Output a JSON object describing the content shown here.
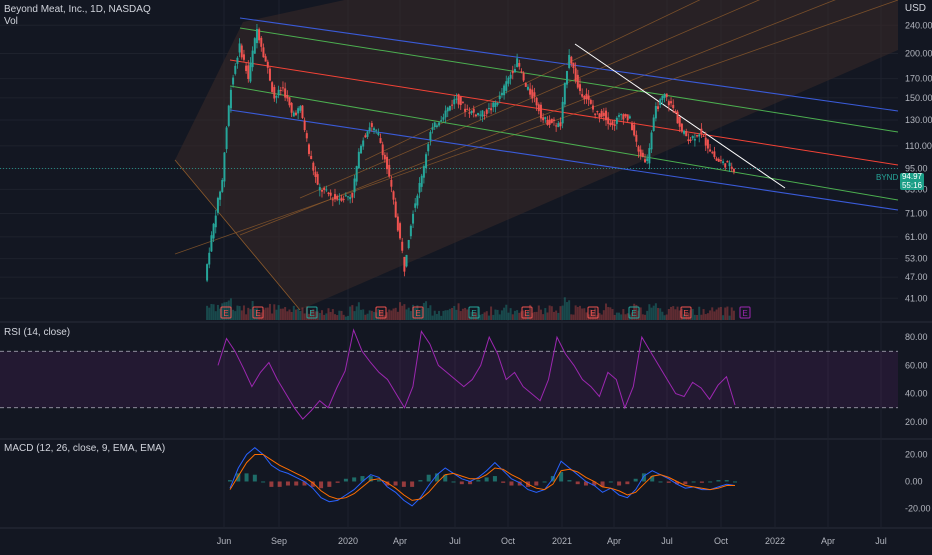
{
  "header": {
    "symbol_line": "Beyond Meat, Inc., 1D, NASDAQ",
    "vol_label": "Vol",
    "currency": "USD"
  },
  "price_badge": {
    "symbol": "BYND",
    "price": "94.97",
    "countdown": "55:16"
  },
  "earnings_marker": "E",
  "colors": {
    "bg": "#131722",
    "grid": "#1e222d",
    "up": "#26a69a",
    "down": "#ef5350",
    "rsi": "#9c27b0",
    "macd": "#2962ff",
    "signal": "#ff6d00",
    "pitchfork_fill": "#3a2a28",
    "channel_blue": "#3a5bd9",
    "channel_green": "#4caf50",
    "channel_red": "#f44336",
    "trend_white": "#ffffff"
  },
  "chart_data": [
    {
      "type": "candlestick",
      "title": "Beyond Meat, Inc., 1D, NASDAQ",
      "y_axis": {
        "scale": "log",
        "ticks": [
          240,
          200,
          170,
          150,
          130,
          110,
          95,
          83,
          71,
          61,
          53,
          47,
          41
        ],
        "ylim": [
          38,
          265
        ],
        "side": "right"
      },
      "x_axis": {
        "ticks": [
          "Jun",
          "Sep",
          "2020",
          "Apr",
          "Jul",
          "Oct",
          "2021",
          "Apr",
          "Jul",
          "Oct",
          "2022",
          "Apr",
          "Jul"
        ]
      },
      "last_price": 94.97,
      "price_path": [
        [
          "Jun",
          46
        ],
        [
          "Jun",
          66
        ],
        [
          "Jun",
          88
        ],
        [
          "Jun",
          160
        ],
        [
          "Jun",
          210
        ],
        [
          "Jul",
          170
        ],
        [
          "Jul",
          234
        ],
        [
          "Jul",
          190
        ],
        [
          "Aug",
          150
        ],
        [
          "Aug",
          160
        ],
        [
          "Sep",
          135
        ],
        [
          "Sep",
          140
        ],
        [
          "Oct",
          105
        ],
        [
          "Oct",
          84
        ],
        [
          "Nov",
          81
        ],
        [
          "Nov",
          78
        ],
        [
          "Dec",
          79
        ],
        [
          "Dec",
          80
        ],
        [
          "2020",
          112
        ],
        [
          "2020",
          125
        ],
        [
          "Feb",
          118
        ],
        [
          "Feb",
          95
        ],
        [
          "Mar",
          70
        ],
        [
          "Mar",
          50
        ],
        [
          "Apr",
          72
        ],
        [
          "Apr",
          90
        ],
        [
          "May",
          120
        ],
        [
          "May",
          130
        ],
        [
          "Jun",
          140
        ],
        [
          "Jun",
          150
        ],
        [
          "Jul",
          140
        ],
        [
          "Jul",
          136
        ],
        [
          "Aug",
          135
        ],
        [
          "Aug",
          140
        ],
        [
          "Sep",
          150
        ],
        [
          "Sep",
          170
        ],
        [
          "Oct",
          190
        ],
        [
          "Oct",
          160
        ],
        [
          "Nov",
          150
        ],
        [
          "Nov",
          130
        ],
        [
          "Dec",
          128
        ],
        [
          "Dec",
          125
        ],
        [
          "2021",
          200
        ],
        [
          "2021",
          160
        ],
        [
          "Feb",
          150
        ],
        [
          "Feb",
          135
        ],
        [
          "Mar",
          135
        ],
        [
          "Mar",
          125
        ],
        [
          "Apr",
          135
        ],
        [
          "Apr",
          130
        ],
        [
          "May",
          105
        ],
        [
          "May",
          100
        ],
        [
          "Jun",
          140
        ],
        [
          "Jun",
          152
        ],
        [
          "Jul",
          140
        ],
        [
          "Jul",
          120
        ],
        [
          "Aug",
          115
        ],
        [
          "Aug",
          120
        ],
        [
          "Sep",
          110
        ],
        [
          "Sep",
          100
        ],
        [
          "Oct",
          98
        ],
        [
          "Oct",
          95
        ]
      ],
      "earnings_events": [
        "Jun",
        "Jul",
        "Oct",
        "2020 Mar",
        "2020 May",
        "2020 Aug",
        "2020 Nov",
        "2021 Feb",
        "2021 May",
        "2021 Aug",
        "2021 Nov"
      ],
      "drawings": [
        "pitchfork",
        "descending channel",
        "trendline"
      ]
    },
    {
      "type": "line",
      "title": "RSI (14, close)",
      "series": [
        {
          "name": "RSI",
          "values": [
            60,
            79,
            70,
            58,
            45,
            55,
            62,
            50,
            40,
            30,
            22,
            28,
            35,
            30,
            44,
            56,
            85,
            70,
            62,
            55,
            50,
            40,
            30,
            45,
            84,
            75,
            60,
            55,
            50,
            45,
            50,
            60,
            80,
            68,
            50,
            55,
            45,
            40,
            35,
            50,
            80,
            68,
            60,
            50,
            45,
            38,
            55,
            50,
            30,
            45,
            80,
            70,
            60,
            50,
            40,
            38,
            48,
            44,
            36,
            46,
            52,
            32
          ]
        }
      ],
      "ylim": [
        15,
        85
      ],
      "y_ticks": [
        80,
        60,
        40,
        20
      ],
      "bands": [
        70,
        30
      ]
    },
    {
      "type": "line",
      "title": "MACD (12, 26, close, 9, EMA, EMA)",
      "series": [
        {
          "name": "MACD",
          "values": [
            -5,
            10,
            20,
            25,
            20,
            12,
            8,
            6,
            3,
            0,
            -5,
            -12,
            -15,
            -14,
            -10,
            -6,
            0,
            5,
            3,
            -4,
            -8,
            -14,
            -18,
            -12,
            -3,
            5,
            10,
            6,
            2,
            0,
            3,
            8,
            14,
            8,
            2,
            -1,
            -6,
            -8,
            -6,
            2,
            15,
            10,
            5,
            0,
            -3,
            -8,
            -5,
            -10,
            -12,
            -6,
            4,
            8,
            5,
            2,
            -2,
            -5,
            -4,
            -6,
            -6,
            -4,
            -2,
            -3
          ]
        },
        {
          "name": "Signal",
          "values": [
            -6,
            4,
            14,
            20,
            20,
            16,
            12,
            9,
            6,
            3,
            -1,
            -7,
            -11,
            -13,
            -12,
            -9,
            -4,
            1,
            2,
            -1,
            -5,
            -10,
            -14,
            -13,
            -8,
            -1,
            5,
            6,
            4,
            2,
            2,
            5,
            10,
            9,
            5,
            2,
            -2,
            -5,
            -6,
            -2,
            8,
            9,
            7,
            3,
            0,
            -4,
            -5,
            -7,
            -10,
            -8,
            -2,
            4,
            5,
            3,
            0,
            -3,
            -4,
            -5,
            -6,
            -5,
            -3,
            -3
          ]
        }
      ],
      "ylim": [
        -30,
        27
      ],
      "y_ticks": [
        20.0,
        0.0,
        -20.0
      ]
    }
  ]
}
